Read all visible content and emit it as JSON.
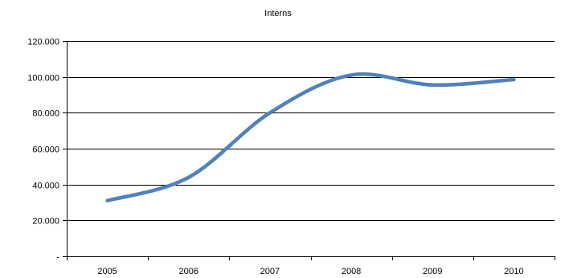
{
  "chart_data": {
    "type": "line",
    "title": "Interns",
    "xlabel": "",
    "ylabel": "",
    "categories": [
      "2005",
      "2006",
      "2007",
      "2008",
      "2009",
      "2010"
    ],
    "series": [
      {
        "values": [
          31000,
          44000,
          80000,
          101000,
          95500,
          98500
        ],
        "color": "#4F81BD",
        "smooth": true
      }
    ],
    "ylim": [
      0,
      120000
    ],
    "yticks": [
      0,
      20000,
      40000,
      60000,
      80000,
      100000,
      120000
    ],
    "ytick_labels": [
      "-",
      "20.000",
      "40.000",
      "60.000",
      "80.000",
      "100.000",
      "120.000"
    ],
    "grid": true,
    "legend": "none"
  }
}
